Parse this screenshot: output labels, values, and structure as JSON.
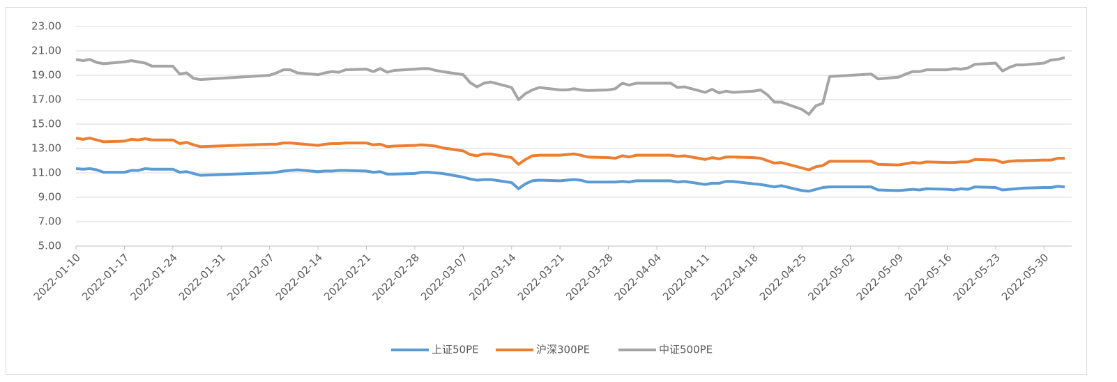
{
  "chart_data": {
    "type": "line",
    "x": [
      "2022-01-10",
      "2022-01-11",
      "2022-01-12",
      "2022-01-13",
      "2022-01-14",
      "2022-01-17",
      "2022-01-18",
      "2022-01-19",
      "2022-01-20",
      "2022-01-21",
      "2022-01-24",
      "2022-01-25",
      "2022-01-26",
      "2022-01-27",
      "2022-01-28",
      "2022-02-07",
      "2022-02-08",
      "2022-02-09",
      "2022-02-10",
      "2022-02-11",
      "2022-02-14",
      "2022-02-15",
      "2022-02-16",
      "2022-02-17",
      "2022-02-18",
      "2022-02-21",
      "2022-02-22",
      "2022-02-23",
      "2022-02-24",
      "2022-02-25",
      "2022-02-28",
      "2022-03-01",
      "2022-03-02",
      "2022-03-03",
      "2022-03-04",
      "2022-03-07",
      "2022-03-08",
      "2022-03-09",
      "2022-03-10",
      "2022-03-11",
      "2022-03-14",
      "2022-03-15",
      "2022-03-16",
      "2022-03-17",
      "2022-03-18",
      "2022-03-21",
      "2022-03-22",
      "2022-03-23",
      "2022-03-24",
      "2022-03-25",
      "2022-03-28",
      "2022-03-29",
      "2022-03-30",
      "2022-03-31",
      "2022-04-01",
      "2022-04-06",
      "2022-04-07",
      "2022-04-08",
      "2022-04-11",
      "2022-04-12",
      "2022-04-13",
      "2022-04-14",
      "2022-04-15",
      "2022-04-18",
      "2022-04-19",
      "2022-04-20",
      "2022-04-21",
      "2022-04-22",
      "2022-04-25",
      "2022-04-26",
      "2022-04-27",
      "2022-04-28",
      "2022-04-29",
      "2022-05-05",
      "2022-05-06",
      "2022-05-09",
      "2022-05-10",
      "2022-05-11",
      "2022-05-12",
      "2022-05-13",
      "2022-05-16",
      "2022-05-17",
      "2022-05-18",
      "2022-05-19",
      "2022-05-20",
      "2022-05-23",
      "2022-05-24",
      "2022-05-25",
      "2022-05-26",
      "2022-05-27",
      "2022-05-30",
      "2022-05-31",
      "2022-06-01",
      "2022-06-02"
    ],
    "series": [
      {
        "name": "上证50PE",
        "color": "#5b9bd5",
        "values": [
          11.35,
          11.3,
          11.35,
          11.25,
          11.05,
          11.05,
          11.2,
          11.2,
          11.35,
          11.3,
          11.3,
          11.05,
          11.1,
          10.95,
          10.8,
          11.0,
          11.05,
          11.15,
          11.2,
          11.25,
          11.1,
          11.15,
          11.15,
          11.2,
          11.2,
          11.15,
          11.05,
          11.1,
          10.9,
          10.9,
          10.95,
          11.05,
          11.05,
          11.0,
          10.95,
          10.65,
          10.5,
          10.4,
          10.45,
          10.45,
          10.2,
          9.7,
          10.1,
          10.35,
          10.4,
          10.35,
          10.4,
          10.45,
          10.4,
          10.25,
          10.25,
          10.25,
          10.3,
          10.25,
          10.35,
          10.35,
          10.25,
          10.3,
          10.05,
          10.15,
          10.15,
          10.3,
          10.3,
          10.1,
          10.05,
          9.95,
          9.85,
          9.95,
          9.55,
          9.5,
          9.65,
          9.8,
          9.85,
          9.85,
          9.6,
          9.55,
          9.6,
          9.65,
          9.6,
          9.7,
          9.65,
          9.6,
          9.7,
          9.65,
          9.85,
          9.8,
          9.6,
          9.65,
          9.7,
          9.75,
          9.8,
          9.8,
          9.9,
          9.85
        ]
      },
      {
        "name": "沪深300PE",
        "color": "#ed7d31",
        "values": [
          13.85,
          13.75,
          13.85,
          13.7,
          13.55,
          13.6,
          13.75,
          13.7,
          13.8,
          13.7,
          13.7,
          13.4,
          13.5,
          13.3,
          13.15,
          13.35,
          13.35,
          13.45,
          13.45,
          13.4,
          13.25,
          13.35,
          13.4,
          13.4,
          13.45,
          13.45,
          13.3,
          13.35,
          13.15,
          13.2,
          13.25,
          13.3,
          13.25,
          13.2,
          13.05,
          12.8,
          12.5,
          12.4,
          12.55,
          12.55,
          12.25,
          11.7,
          12.1,
          12.4,
          12.45,
          12.45,
          12.5,
          12.55,
          12.45,
          12.3,
          12.25,
          12.2,
          12.4,
          12.3,
          12.45,
          12.45,
          12.35,
          12.4,
          12.1,
          12.25,
          12.15,
          12.3,
          12.3,
          12.25,
          12.2,
          12.0,
          11.8,
          11.85,
          11.4,
          11.25,
          11.5,
          11.6,
          11.95,
          11.95,
          11.7,
          11.65,
          11.75,
          11.85,
          11.8,
          11.9,
          11.85,
          11.85,
          11.9,
          11.9,
          12.1,
          12.05,
          11.85,
          11.95,
          12.0,
          12.0,
          12.05,
          12.05,
          12.2,
          12.2
        ]
      },
      {
        "name": "中证500PE",
        "color": "#a5a5a5",
        "values": [
          20.3,
          20.2,
          20.3,
          20.05,
          19.95,
          20.1,
          20.2,
          20.1,
          20.0,
          19.75,
          19.75,
          19.1,
          19.2,
          18.75,
          18.65,
          19.0,
          19.2,
          19.45,
          19.45,
          19.2,
          19.05,
          19.2,
          19.3,
          19.25,
          19.45,
          19.5,
          19.3,
          19.55,
          19.25,
          19.4,
          19.5,
          19.55,
          19.55,
          19.4,
          19.3,
          19.05,
          18.4,
          18.05,
          18.35,
          18.45,
          18.0,
          17.0,
          17.5,
          17.8,
          18.0,
          17.8,
          17.8,
          17.9,
          17.8,
          17.75,
          17.8,
          17.9,
          18.35,
          18.2,
          18.35,
          18.35,
          18.0,
          18.05,
          17.6,
          17.85,
          17.55,
          17.7,
          17.6,
          17.7,
          17.8,
          17.4,
          16.8,
          16.8,
          16.2,
          15.8,
          16.5,
          16.7,
          18.9,
          19.1,
          18.7,
          18.85,
          19.1,
          19.3,
          19.3,
          19.45,
          19.45,
          19.55,
          19.5,
          19.6,
          19.9,
          20.0,
          19.35,
          19.65,
          19.85,
          19.85,
          20.0,
          20.25,
          20.3,
          20.45
        ]
      }
    ],
    "xlim": [
      "2022-01-10",
      "2022-06-03"
    ],
    "xticks": [
      "2022-01-10",
      "2022-01-17",
      "2022-01-24",
      "2022-01-31",
      "2022-02-07",
      "2022-02-14",
      "2022-02-21",
      "2022-02-28",
      "2022-03-07",
      "2022-03-14",
      "2022-03-21",
      "2022-03-28",
      "2022-04-04",
      "2022-04-11",
      "2022-04-18",
      "2022-04-25",
      "2022-05-02",
      "2022-05-09",
      "2022-05-16",
      "2022-05-23",
      "2022-05-30"
    ],
    "ylim": [
      5,
      23
    ],
    "yticks": [
      {
        "value": 5,
        "label": "5.00"
      },
      {
        "value": 7,
        "label": "7.00"
      },
      {
        "value": 9,
        "label": "9.00"
      },
      {
        "value": 11,
        "label": "11.00"
      },
      {
        "value": 13,
        "label": "13.00"
      },
      {
        "value": 15,
        "label": "15.00"
      },
      {
        "value": 17,
        "label": "17.00"
      },
      {
        "value": 19,
        "label": "19.00"
      },
      {
        "value": 21,
        "label": "21.00"
      },
      {
        "value": 23,
        "label": "23.00"
      }
    ],
    "grid": true,
    "legend": "bottom"
  }
}
